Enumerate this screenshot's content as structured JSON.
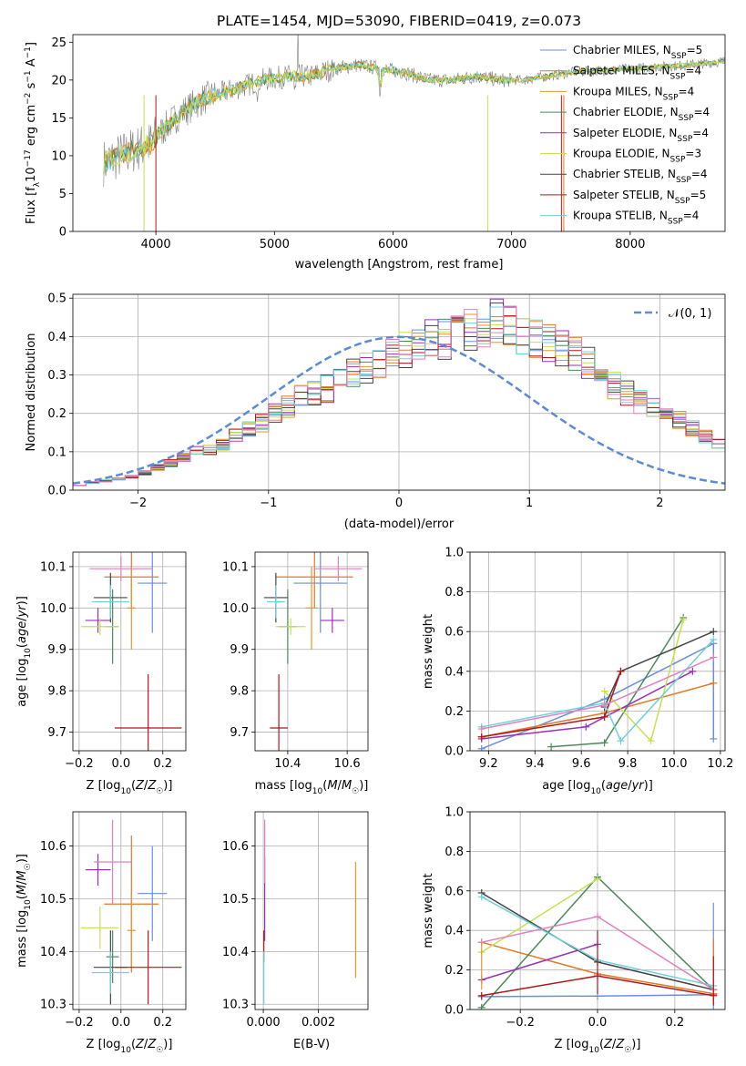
{
  "colors": {
    "chabrier_miles": "#6a8fe0",
    "salpeter_miles": "#e07a2a",
    "kroupa_miles": "#e8962a",
    "chabrier_elodie": "#4a8a5a",
    "salpeter_elodie": "#9a30b8",
    "kroupa_elodie": "#c8e050",
    "chabrier_stelib": "#444444",
    "salpeter_stelib": "#b01818",
    "kroupa_stelib": "#70d0d8",
    "pink": "#e080c0",
    "gray": "#808080",
    "normal_line": "#5b8bd8"
  },
  "chart_data": [
    {
      "id": "spectrum",
      "type": "line",
      "title": "PLATE=1454, MJD=53090, FIBERID=0419, z=0.073",
      "xlabel": "wavelength [Angstrom, rest frame]",
      "ylabel": "Flux [f_λ 10^-17 erg cm^-2 s^-1 A^-1]",
      "xlim": [
        3300,
        8800
      ],
      "ylim": [
        0,
        26
      ],
      "xticks": [
        4000,
        5000,
        6000,
        7000,
        8000
      ],
      "yticks": [
        0,
        5,
        10,
        15,
        20,
        25
      ],
      "legend": [
        {
          "name": "Chabrier MILES, N_SSP=5",
          "label": "Chabrier MILES, N",
          "n": "=5"
        },
        {
          "name": "Salpeter MILES, N_SSP=4",
          "label": "Salpeter MILES, N",
          "n": "=4"
        },
        {
          "name": "Kroupa MILES, N_SSP=4",
          "label": "Kroupa MILES, N",
          "n": "=4"
        },
        {
          "name": "Chabrier ELODIE, N_SSP=4",
          "label": "Chabrier ELODIE, N",
          "n": "=4"
        },
        {
          "name": "Salpeter ELODIE, N_SSP=4",
          "label": "Salpeter ELODIE, N",
          "n": "=4"
        },
        {
          "name": "Kroupa ELODIE, N_SSP=3",
          "label": "Kroupa ELODIE, N",
          "n": "=3"
        },
        {
          "name": "Chabrier STELIB, N_SSP=4",
          "label": "Chabrier STELIB, N",
          "n": "=4"
        },
        {
          "name": "Salpeter STELIB, N_SSP=5",
          "label": "Salpeter STELIB, N",
          "n": "=5"
        },
        {
          "name": "Kroupa STELIB, N_SSP=4",
          "label": "Kroupa STELIB, N",
          "n": "=4"
        }
      ],
      "legend_sub": "SSP",
      "legend_position": "top-right",
      "continuum": [
        [
          3550,
          9
        ],
        [
          3700,
          10
        ],
        [
          3850,
          11
        ],
        [
          3950,
          11.5
        ],
        [
          4000,
          12.5
        ],
        [
          4100,
          14
        ],
        [
          4200,
          15.5
        ],
        [
          4300,
          16.5
        ],
        [
          4400,
          17.5
        ],
        [
          4500,
          18
        ],
        [
          4700,
          19
        ],
        [
          4900,
          20
        ],
        [
          5100,
          20.5
        ],
        [
          5300,
          20.5
        ],
        [
          5500,
          21.5
        ],
        [
          5700,
          22
        ],
        [
          5900,
          21.5
        ],
        [
          6100,
          21
        ],
        [
          6300,
          20
        ],
        [
          6500,
          20
        ],
        [
          6700,
          20.5
        ],
        [
          6900,
          20
        ],
        [
          7100,
          20
        ],
        [
          7300,
          20.5
        ],
        [
          7500,
          21
        ],
        [
          8000,
          21.5
        ],
        [
          8500,
          22
        ],
        [
          8800,
          22.5
        ]
      ]
    },
    {
      "id": "residuals",
      "type": "line",
      "xlabel": "(data-model)/error",
      "ylabel": "Normed distribution",
      "xlim": [
        -2.5,
        2.5
      ],
      "ylim": [
        0,
        0.51
      ],
      "xticks": [
        -2,
        -1,
        0,
        1,
        2
      ],
      "yticks": [
        0.0,
        0.1,
        0.2,
        0.3,
        0.4,
        0.5
      ],
      "legend": "𝒩(0, 1)",
      "legend_position": "top-right",
      "grid": true,
      "histogram_bin_width": 0.1,
      "histogram_range": [
        -2.5,
        2.5
      ],
      "histogram_template": [
        0.015,
        0.02,
        0.025,
        0.03,
        0.035,
        0.045,
        0.06,
        0.07,
        0.085,
        0.1,
        0.105,
        0.12,
        0.14,
        0.16,
        0.175,
        0.2,
        0.22,
        0.24,
        0.255,
        0.265,
        0.28,
        0.3,
        0.32,
        0.33,
        0.35,
        0.37,
        0.38,
        0.39,
        0.395,
        0.41,
        0.42,
        0.43,
        0.44,
        0.43,
        0.41,
        0.4,
        0.38,
        0.37,
        0.35,
        0.33,
        0.3,
        0.27,
        0.25,
        0.23,
        0.21,
        0.2,
        0.18,
        0.16,
        0.14,
        0.12
      ]
    },
    {
      "id": "age_vs_z",
      "type": "scatter",
      "xlabel": "Z [log10(Z/Z☉)]",
      "ylabel": "age  [log10(age/yr)]",
      "xlim": [
        -0.23,
        0.31
      ],
      "ylim": [
        9.655,
        10.135
      ],
      "xticks": [
        -0.2,
        0.0,
        0.2
      ],
      "yticks": [
        9.7,
        9.8,
        9.9,
        10.0,
        10.1
      ],
      "grid": true,
      "points": [
        {
          "c": "chabrier_miles",
          "x": 0.15,
          "xerr": 0.07,
          "y": 10.06,
          "yerr": 0.12
        },
        {
          "c": "salpeter_miles",
          "x": 0.05,
          "xerr": 0.13,
          "y": 10.075,
          "yerr": 0.075
        },
        {
          "c": "kroupa_miles",
          "x": 0.05,
          "xerr": 0.02,
          "y": 10.0,
          "yerr": 0.1
        },
        {
          "c": "chabrier_elodie",
          "x": -0.04,
          "xerr": 0.03,
          "y": 9.955,
          "yerr": 0.09
        },
        {
          "c": "salpeter_elodie",
          "x": -0.11,
          "xerr": 0.06,
          "y": 9.97,
          "yerr": 0.03
        },
        {
          "c": "kroupa_elodie",
          "x": -0.1,
          "xerr": 0.09,
          "y": 9.955,
          "yerr": 0.02
        },
        {
          "c": "chabrier_stelib",
          "x": -0.05,
          "xerr": 0.08,
          "y": 10.025,
          "yerr": 0.06
        },
        {
          "c": "salpeter_stelib",
          "x": 0.13,
          "xerr": 0.16,
          "y": 9.71,
          "yerr": 0.13
        },
        {
          "c": "kroupa_stelib",
          "x": -0.05,
          "xerr": 0.09,
          "y": 10.015,
          "yerr": 0.04
        },
        {
          "c": "pink",
          "x": 0.0,
          "xerr": 0.15,
          "y": 10.095,
          "yerr": 0.03
        }
      ]
    },
    {
      "id": "age_vs_mass",
      "type": "scatter",
      "xlabel": "mass [log10(M/M☉)]",
      "ylabel": "",
      "xlim": [
        10.29,
        10.67
      ],
      "ylim": [
        9.655,
        10.135
      ],
      "xticks": [
        10.4,
        10.6
      ],
      "yticks": [
        9.7,
        9.8,
        9.9,
        10.0,
        10.1
      ],
      "grid": true,
      "points": [
        {
          "c": "chabrier_miles",
          "x": 10.51,
          "xerr": 0.09,
          "y": 10.06,
          "yerr": 0.12
        },
        {
          "c": "salpeter_miles",
          "x": 10.49,
          "xerr": 0.13,
          "y": 10.075,
          "yerr": 0.075
        },
        {
          "c": "kroupa_miles",
          "x": 10.48,
          "xerr": 0.02,
          "y": 10.0,
          "yerr": 0.1
        },
        {
          "c": "chabrier_elodie",
          "x": 10.4,
          "xerr": 0.03,
          "y": 9.955,
          "yerr": 0.09
        },
        {
          "c": "salpeter_elodie",
          "x": 10.55,
          "xerr": 0.04,
          "y": 9.97,
          "yerr": 0.03
        },
        {
          "c": "kroupa_elodie",
          "x": 10.41,
          "xerr": 0.05,
          "y": 9.955,
          "yerr": 0.02
        },
        {
          "c": "chabrier_stelib",
          "x": 10.36,
          "xerr": 0.04,
          "y": 10.025,
          "yerr": 0.06
        },
        {
          "c": "salpeter_stelib",
          "x": 10.37,
          "xerr": 0.03,
          "y": 9.71,
          "yerr": 0.13
        },
        {
          "c": "kroupa_stelib",
          "x": 10.36,
          "xerr": 0.03,
          "y": 10.015,
          "yerr": 0.04
        },
        {
          "c": "pink",
          "x": 10.57,
          "xerr": 0.08,
          "y": 10.095,
          "yerr": 0.03
        }
      ]
    },
    {
      "id": "weight_vs_age",
      "type": "line",
      "xlabel": "age  [log10(age/yr)]",
      "ylabel": "mass weight",
      "xlim": [
        9.12,
        10.22
      ],
      "ylim": [
        0,
        1
      ],
      "xticks": [
        9.2,
        9.4,
        9.6,
        9.8,
        10.0,
        10.2
      ],
      "yticks": [
        0.0,
        0.2,
        0.4,
        0.6,
        0.8,
        1.0
      ],
      "grid": true,
      "series": [
        {
          "c": "chabrier_miles",
          "x": [
            9.17,
            9.7,
            10.17,
            10.17
          ],
          "y": [
            0.01,
            0.26,
            0.54,
            0.06
          ]
        },
        {
          "c": "salpeter_miles",
          "x": [
            9.17,
            9.7,
            10.17
          ],
          "y": [
            0.07,
            0.19,
            0.34
          ]
        },
        {
          "c": "chabrier_elodie",
          "x": [
            9.47,
            9.7,
            10.04
          ],
          "y": [
            0.02,
            0.04,
            0.67
          ]
        },
        {
          "c": "salpeter_elodie",
          "x": [
            9.17,
            9.62,
            10.08
          ],
          "y": [
            0.06,
            0.12,
            0.4
          ]
        },
        {
          "c": "kroupa_elodie",
          "x": [
            9.7,
            9.9,
            10.04
          ],
          "y": [
            0.3,
            0.05,
            0.66
          ]
        },
        {
          "c": "chabrier_stelib",
          "x": [
            9.7,
            9.77,
            10.17
          ],
          "y": [
            0.22,
            0.4,
            0.6
          ]
        },
        {
          "c": "salpeter_stelib",
          "x": [
            9.17,
            9.7,
            9.77
          ],
          "y": [
            0.07,
            0.17,
            0.4
          ]
        },
        {
          "c": "kroupa_stelib",
          "x": [
            9.17,
            9.7,
            9.77,
            10.17
          ],
          "y": [
            0.12,
            0.24,
            0.05,
            0.56
          ]
        },
        {
          "c": "pink",
          "x": [
            9.17,
            9.7,
            10.17
          ],
          "y": [
            0.11,
            0.23,
            0.47
          ]
        }
      ]
    },
    {
      "id": "mass_vs_z",
      "type": "scatter",
      "xlabel": "Z [log10(Z/Z☉)]",
      "ylabel": "mass [log10(M/M☉)]",
      "xlim": [
        -0.23,
        0.31
      ],
      "ylim": [
        10.29,
        10.665
      ],
      "xticks": [
        -0.2,
        0.0,
        0.2
      ],
      "yticks": [
        10.3,
        10.4,
        10.5,
        10.6
      ],
      "grid": true,
      "points": [
        {
          "c": "chabrier_miles",
          "x": 0.15,
          "xerr": 0.07,
          "y": 10.51,
          "yerr": 0.09
        },
        {
          "c": "salpeter_miles",
          "x": 0.05,
          "xerr": 0.13,
          "y": 10.49,
          "yerr": 0.13
        },
        {
          "c": "kroupa_miles",
          "x": 0.05,
          "xerr": 0.02,
          "y": 10.44,
          "yerr": 0.07
        },
        {
          "c": "chabrier_elodie",
          "x": -0.04,
          "xerr": 0.03,
          "y": 10.39,
          "yerr": 0.05
        },
        {
          "c": "salpeter_elodie",
          "x": -0.11,
          "xerr": 0.06,
          "y": 10.555,
          "yerr": 0.03
        },
        {
          "c": "kroupa_elodie",
          "x": -0.1,
          "xerr": 0.09,
          "y": 10.445,
          "yerr": 0.04
        },
        {
          "c": "chabrier_stelib",
          "x": -0.05,
          "xerr": 0.08,
          "y": 10.37,
          "yerr": 0.07
        },
        {
          "c": "salpeter_stelib",
          "x": 0.13,
          "xerr": 0.16,
          "y": 10.37,
          "yerr": 0.07
        },
        {
          "c": "kroupa_stelib",
          "x": -0.05,
          "xerr": 0.09,
          "y": 10.36,
          "yerr": 0.04
        },
        {
          "c": "pink",
          "x": -0.04,
          "xerr": 0.09,
          "y": 10.57,
          "yerr": 0.08
        }
      ]
    },
    {
      "id": "mass_vs_ebv",
      "type": "scatter",
      "xlabel": "E(B-V)",
      "ylabel": "",
      "xlim": [
        -0.0003,
        0.0038
      ],
      "ylim": [
        10.29,
        10.665
      ],
      "xticks": [
        0.0,
        0.002
      ],
      "xtick_labels": [
        "0.000",
        "0.002"
      ],
      "yticks": [
        10.3,
        10.4,
        10.5,
        10.6
      ],
      "grid": true,
      "points": [
        {
          "c": "kroupa_miles",
          "x": 0.00335,
          "xerr": 0,
          "y": 10.46,
          "yerr": 0.11
        },
        {
          "c": "salpeter_elodie",
          "x": 5e-05,
          "xerr": 0,
          "y": 10.5,
          "yerr": 0.08
        },
        {
          "c": "pink",
          "x": 5e-05,
          "xerr": 0,
          "y": 10.59,
          "yerr": 0.06
        },
        {
          "c": "salpeter_stelib",
          "x": 2e-05,
          "xerr": 0,
          "y": 10.41,
          "yerr": 0.03
        },
        {
          "c": "kroupa_stelib",
          "x": 2e-05,
          "xerr": 0,
          "y": 10.35,
          "yerr": 0.05
        }
      ]
    },
    {
      "id": "weight_vs_z",
      "type": "line",
      "xlabel": "Z [log10(Z/Z☉)]",
      "ylabel": "mass weight",
      "xlim": [
        -0.33,
        0.33
      ],
      "ylim": [
        0,
        1
      ],
      "xticks": [
        -0.2,
        0.0,
        0.2
      ],
      "yticks": [
        0.0,
        0.2,
        0.4,
        0.6,
        0.8,
        1.0
      ],
      "grid": true,
      "series": [
        {
          "c": "chabrier_miles",
          "x": [
            -0.3,
            0.0,
            0.3
          ],
          "y": [
            0.065,
            0.068,
            0.075
          ]
        },
        {
          "c": "salpeter_miles",
          "x": [
            -0.3,
            0.0,
            0.3
          ],
          "y": [
            0.34,
            0.18,
            0.08
          ]
        },
        {
          "c": "chabrier_elodie",
          "x": [
            -0.3,
            0.0,
            0.3
          ],
          "y": [
            0.01,
            0.67,
            0.1
          ]
        },
        {
          "c": "salpeter_elodie",
          "x": [
            -0.3,
            0.0
          ],
          "y": [
            0.15,
            0.33
          ]
        },
        {
          "c": "kroupa_elodie",
          "x": [
            -0.3,
            0.0
          ],
          "y": [
            0.29,
            0.66
          ]
        },
        {
          "c": "chabrier_stelib",
          "x": [
            -0.3,
            0.0,
            0.3
          ],
          "y": [
            0.59,
            0.24,
            0.1
          ]
        },
        {
          "c": "salpeter_stelib",
          "x": [
            -0.3,
            0.0,
            0.3
          ],
          "y": [
            0.07,
            0.17,
            0.07
          ]
        },
        {
          "c": "kroupa_stelib",
          "x": [
            -0.3,
            0.0,
            0.3
          ],
          "y": [
            0.57,
            0.25,
            0.12
          ]
        },
        {
          "c": "pink",
          "x": [
            -0.3,
            0.0,
            0.3
          ],
          "y": [
            0.34,
            0.47,
            0.1
          ]
        }
      ]
    }
  ]
}
